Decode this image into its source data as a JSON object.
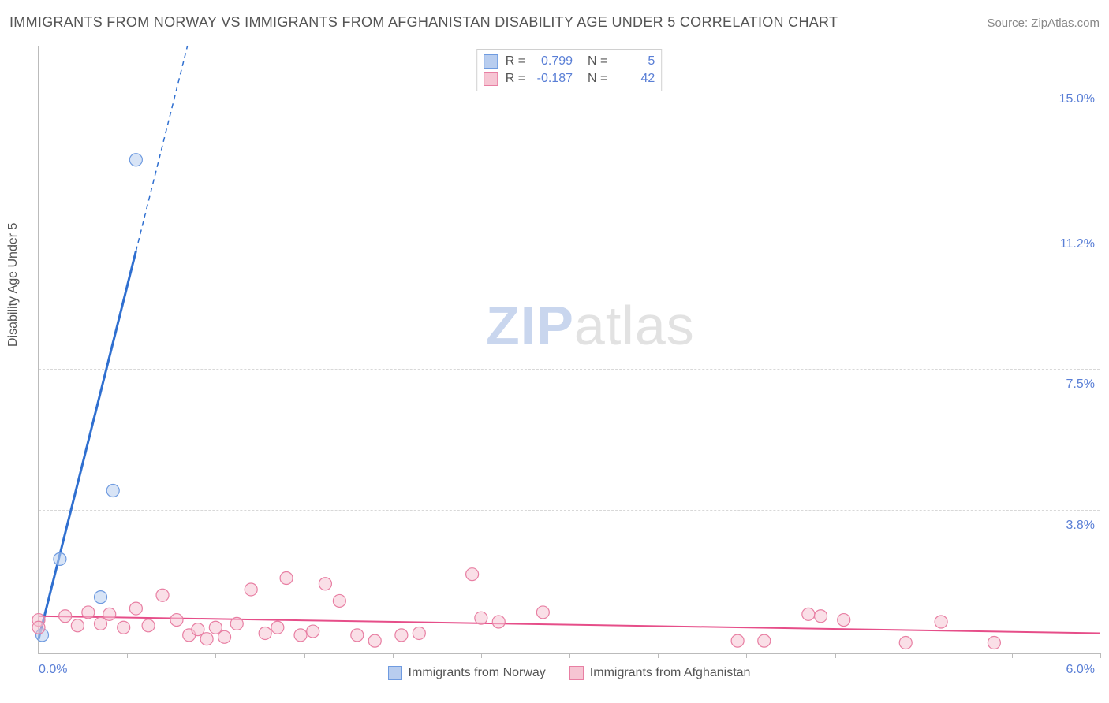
{
  "header": {
    "title": "IMMIGRANTS FROM NORWAY VS IMMIGRANTS FROM AFGHANISTAN DISABILITY AGE UNDER 5 CORRELATION CHART",
    "source": "Source: ZipAtlas.com"
  },
  "watermark": {
    "part1": "ZIP",
    "part2": "atlas"
  },
  "chart": {
    "type": "scatter",
    "yaxis_label": "Disability Age Under 5",
    "background_color": "#ffffff",
    "grid_color": "#d8d8d8",
    "axis_color": "#bbbbbb",
    "tick_font_color": "#5a7fd6",
    "label_font_color": "#555555",
    "title_fontsize": 18,
    "tick_fontsize": 16,
    "xlim": [
      0.0,
      6.0
    ],
    "ylim": [
      0.0,
      16.0
    ],
    "ygrid": [
      {
        "value": 3.8,
        "label": "3.8%"
      },
      {
        "value": 7.5,
        "label": "7.5%"
      },
      {
        "value": 11.2,
        "label": "11.2%"
      },
      {
        "value": 15.0,
        "label": "15.0%"
      }
    ],
    "xticks": [
      0.5,
      1.0,
      1.5,
      2.0,
      2.5,
      3.0,
      3.5,
      4.0,
      4.5,
      5.0,
      5.5,
      6.0
    ],
    "xaxis_left_label": "0.0%",
    "xaxis_right_label": "6.0%",
    "rn_legend": [
      {
        "r": "0.799",
        "n": "5"
      },
      {
        "r": "-0.187",
        "n": "42"
      }
    ],
    "series": [
      {
        "name": "Immigrants from Norway",
        "fill_color": "#b8cdef",
        "stroke_color": "#6f9be0",
        "line_color": "#2f6fd0",
        "line_width": 3,
        "marker_radius": 8,
        "marker_opacity": 0.55,
        "trend": {
          "x1": 0.0,
          "y1": 0.4,
          "x2": 0.55,
          "y2": 10.6,
          "dash_extend_to_y": 16.0
        },
        "points": [
          {
            "x": 0.02,
            "y": 0.5
          },
          {
            "x": 0.12,
            "y": 2.5
          },
          {
            "x": 0.35,
            "y": 1.5
          },
          {
            "x": 0.42,
            "y": 4.3
          },
          {
            "x": 0.55,
            "y": 13.0
          }
        ]
      },
      {
        "name": "Immigrants from Afghanistan",
        "fill_color": "#f6c5d3",
        "stroke_color": "#e87fa3",
        "line_color": "#e64e89",
        "line_width": 2,
        "marker_radius": 8,
        "marker_opacity": 0.55,
        "trend": {
          "x1": 0.0,
          "y1": 1.0,
          "x2": 6.0,
          "y2": 0.55
        },
        "points": [
          {
            "x": 0.0,
            "y": 0.9
          },
          {
            "x": 0.0,
            "y": 0.7
          },
          {
            "x": 0.15,
            "y": 1.0
          },
          {
            "x": 0.22,
            "y": 0.75
          },
          {
            "x": 0.28,
            "y": 1.1
          },
          {
            "x": 0.35,
            "y": 0.8
          },
          {
            "x": 0.4,
            "y": 1.05
          },
          {
            "x": 0.48,
            "y": 0.7
          },
          {
            "x": 0.55,
            "y": 1.2
          },
          {
            "x": 0.62,
            "y": 0.75
          },
          {
            "x": 0.7,
            "y": 1.55
          },
          {
            "x": 0.78,
            "y": 0.9
          },
          {
            "x": 0.85,
            "y": 0.5
          },
          {
            "x": 0.9,
            "y": 0.65
          },
          {
            "x": 0.95,
            "y": 0.4
          },
          {
            "x": 1.0,
            "y": 0.7
          },
          {
            "x": 1.05,
            "y": 0.45
          },
          {
            "x": 1.12,
            "y": 0.8
          },
          {
            "x": 1.2,
            "y": 1.7
          },
          {
            "x": 1.28,
            "y": 0.55
          },
          {
            "x": 1.35,
            "y": 0.7
          },
          {
            "x": 1.4,
            "y": 2.0
          },
          {
            "x": 1.48,
            "y": 0.5
          },
          {
            "x": 1.55,
            "y": 0.6
          },
          {
            "x": 1.62,
            "y": 1.85
          },
          {
            "x": 1.7,
            "y": 1.4
          },
          {
            "x": 1.8,
            "y": 0.5
          },
          {
            "x": 1.9,
            "y": 0.35
          },
          {
            "x": 2.05,
            "y": 0.5
          },
          {
            "x": 2.15,
            "y": 0.55
          },
          {
            "x": 2.45,
            "y": 2.1
          },
          {
            "x": 2.5,
            "y": 0.95
          },
          {
            "x": 2.6,
            "y": 0.85
          },
          {
            "x": 2.85,
            "y": 1.1
          },
          {
            "x": 3.95,
            "y": 0.35
          },
          {
            "x": 4.1,
            "y": 0.35
          },
          {
            "x": 4.35,
            "y": 1.05
          },
          {
            "x": 4.42,
            "y": 1.0
          },
          {
            "x": 4.55,
            "y": 0.9
          },
          {
            "x": 4.9,
            "y": 0.3
          },
          {
            "x": 5.1,
            "y": 0.85
          },
          {
            "x": 5.4,
            "y": 0.3
          }
        ]
      }
    ]
  }
}
